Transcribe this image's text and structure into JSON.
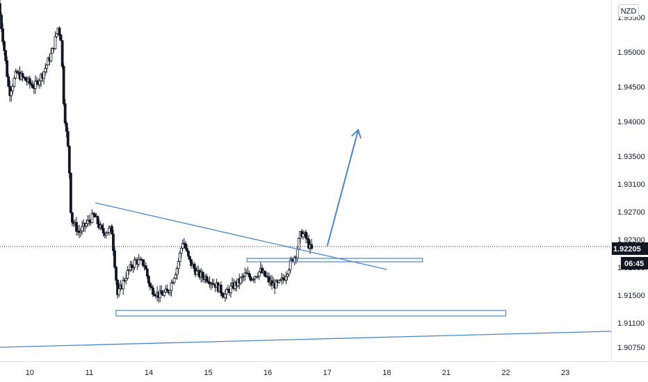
{
  "chart_data": {
    "type": "candlestick",
    "currency": "NZD",
    "ylim": [
      1.9055,
      1.9575
    ],
    "y_ticks": [
      "1.95500",
      "1.95000",
      "1.94500",
      "1.94000",
      "1.93500",
      "1.93100",
      "1.92700",
      "1.92300",
      "1.91900",
      "1.91500",
      "1.91100",
      "1.90750"
    ],
    "x_ticks": [
      {
        "label": "10",
        "pos": 0.5
      },
      {
        "label": "11",
        "pos": 1.5
      },
      {
        "label": "14",
        "pos": 2.5
      },
      {
        "label": "15",
        "pos": 3.5
      },
      {
        "label": "16",
        "pos": 4.5
      },
      {
        "label": "17",
        "pos": 5.5
      },
      {
        "label": "18",
        "pos": 6.5
      },
      {
        "label": "21",
        "pos": 7.5
      },
      {
        "label": "22",
        "pos": 8.5
      },
      {
        "label": "23",
        "pos": 9.5
      }
    ],
    "x_range": [
      0,
      10.27
    ],
    "current_price": {
      "value": 1.92205,
      "label": "1.92205",
      "countdown": "06:45"
    },
    "colors": {
      "candle": "#131722",
      "drawing": "#4a86c8",
      "price_box": "#131722"
    },
    "anchors": [
      [
        0.0,
        1.957
      ],
      [
        0.1,
        1.95
      ],
      [
        0.18,
        1.944
      ],
      [
        0.3,
        1.947
      ],
      [
        0.45,
        1.946
      ],
      [
        0.6,
        1.945
      ],
      [
        0.75,
        1.947
      ],
      [
        0.9,
        1.95
      ],
      [
        1.0,
        1.9535
      ],
      [
        1.05,
        1.952
      ],
      [
        1.1,
        1.942
      ],
      [
        1.18,
        1.935
      ],
      [
        1.22,
        1.926
      ],
      [
        1.35,
        1.924
      ],
      [
        1.45,
        1.925
      ],
      [
        1.6,
        1.9265
      ],
      [
        1.75,
        1.924
      ],
      [
        1.9,
        1.9245
      ],
      [
        2.0,
        1.915
      ],
      [
        2.05,
        1.916
      ],
      [
        2.15,
        1.918
      ],
      [
        2.3,
        1.92
      ],
      [
        2.45,
        1.9195
      ],
      [
        2.55,
        1.916
      ],
      [
        2.7,
        1.915
      ],
      [
        2.85,
        1.9155
      ],
      [
        3.0,
        1.919
      ],
      [
        3.1,
        1.923
      ],
      [
        3.2,
        1.92
      ],
      [
        3.35,
        1.918
      ],
      [
        3.5,
        1.9175
      ],
      [
        3.65,
        1.9165
      ],
      [
        3.8,
        1.915
      ],
      [
        3.9,
        1.916
      ],
      [
        4.05,
        1.917
      ],
      [
        4.15,
        1.918
      ],
      [
        4.25,
        1.9175
      ],
      [
        4.4,
        1.9185
      ],
      [
        4.5,
        1.9175
      ],
      [
        4.6,
        1.9165
      ],
      [
        4.7,
        1.9165
      ],
      [
        4.8,
        1.9175
      ],
      [
        4.9,
        1.9195
      ],
      [
        5.0,
        1.921
      ],
      [
        5.08,
        1.924
      ],
      [
        5.15,
        1.9235
      ],
      [
        5.25,
        1.9215
      ]
    ],
    "drawings": {
      "descending_trendline": {
        "from": [
          1.6,
          1.9283
        ],
        "to": [
          6.5,
          1.9187
        ]
      },
      "rising_trendline": {
        "from": [
          0.0,
          1.9075
        ],
        "to": [
          10.27,
          1.9098
        ]
      },
      "resistance_box": {
        "x": [
          4.15,
          7.1
        ],
        "y": [
          1.9198,
          1.9203
        ]
      },
      "support_box": {
        "x": [
          1.95,
          8.5
        ],
        "y": [
          1.912,
          1.9128
        ]
      },
      "projection_arrow": {
        "from": [
          5.5,
          1.9221
        ],
        "to": [
          6.02,
          1.9388
        ]
      }
    }
  }
}
